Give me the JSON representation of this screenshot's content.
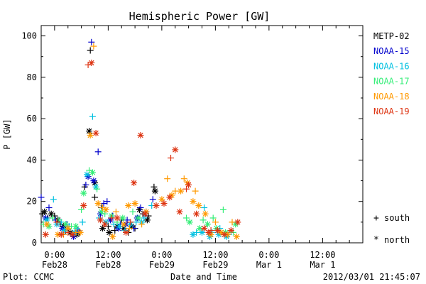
{
  "chart_data": {
    "type": "scatter",
    "title": "Hemispheric Power [GW]",
    "ylabel": "P [GW]",
    "xlabel": "Date and Time",
    "ylim": [
      0,
      105
    ],
    "yticks": [
      0,
      20,
      40,
      60,
      80,
      100
    ],
    "xlim": [
      "2012-02-27T21:00",
      "2012-03-01T21:00"
    ],
    "xticks": [
      {
        "t": "2012-02-28T00:00",
        "l1": "0:00",
        "l2": "Feb28"
      },
      {
        "t": "2012-02-28T12:00",
        "l1": "12:00",
        "l2": "Feb28"
      },
      {
        "t": "2012-02-29T00:00",
        "l1": "0:00",
        "l2": "Feb29"
      },
      {
        "t": "2012-02-29T12:00",
        "l1": "12:00",
        "l2": "Feb29"
      },
      {
        "t": "2012-03-01T00:00",
        "l1": "0:00",
        "l2": "Mar 1"
      },
      {
        "t": "2012-03-01T12:00",
        "l1": "12:00",
        "l2": "Mar 1"
      }
    ],
    "minor_tick_hours": 3,
    "grid": false,
    "legend_position": "right",
    "markers": {
      "south": "+",
      "north": "*"
    },
    "series": [
      {
        "name": "METP-02",
        "color": "#000000",
        "points": [
          [
            "2012-02-27T21:15",
            14,
            "s"
          ],
          [
            "2012-02-27T22:30",
            12,
            "s"
          ],
          [
            "2012-02-28T00:00",
            13,
            "s"
          ],
          [
            "2012-02-28T01:15",
            9,
            "s"
          ],
          [
            "2012-02-28T02:30",
            6,
            "s"
          ],
          [
            "2012-02-28T04:00",
            4,
            "s"
          ],
          [
            "2012-02-28T05:30",
            5,
            "s"
          ],
          [
            "2012-02-28T06:45",
            27,
            "s"
          ],
          [
            "2012-02-28T08:00",
            93,
            "s"
          ],
          [
            "2012-02-28T09:00",
            22,
            "s"
          ],
          [
            "2012-02-28T10:30",
            17,
            "s"
          ],
          [
            "2012-02-28T12:00",
            8,
            "s"
          ],
          [
            "2012-02-28T13:30",
            6,
            "s"
          ],
          [
            "2012-02-28T15:00",
            11,
            "s"
          ],
          [
            "2012-02-28T16:30",
            5,
            "s"
          ],
          [
            "2012-02-28T18:00",
            7,
            "s"
          ],
          [
            "2012-02-28T19:45",
            14,
            "s"
          ],
          [
            "2012-02-28T21:00",
            13,
            "s"
          ],
          [
            "2012-02-28T22:15",
            27,
            "s"
          ],
          [
            "2012-02-27T21:45",
            15,
            "n"
          ],
          [
            "2012-02-27T23:15",
            14,
            "n"
          ],
          [
            "2012-02-28T00:45",
            11,
            "n"
          ],
          [
            "2012-02-28T02:00",
            8,
            "n"
          ],
          [
            "2012-02-28T03:30",
            5,
            "n"
          ],
          [
            "2012-02-28T05:00",
            4,
            "n"
          ],
          [
            "2012-02-28T07:45",
            54,
            "n"
          ],
          [
            "2012-02-28T09:00",
            29,
            "n"
          ],
          [
            "2012-02-28T10:45",
            7,
            "n"
          ],
          [
            "2012-02-28T12:15",
            5,
            "n"
          ],
          [
            "2012-02-28T14:00",
            8,
            "n"
          ],
          [
            "2012-02-28T15:30",
            7,
            "n"
          ],
          [
            "2012-02-28T17:15",
            8,
            "n"
          ],
          [
            "2012-02-28T19:00",
            16,
            "n"
          ],
          [
            "2012-02-28T20:45",
            11,
            "n"
          ],
          [
            "2012-02-28T22:30",
            25,
            "n"
          ]
        ]
      },
      {
        "name": "NOAA-15",
        "color": "#0000cc",
        "points": [
          [
            "2012-02-27T21:00",
            22,
            "s"
          ],
          [
            "2012-02-27T22:45",
            17,
            "s"
          ],
          [
            "2012-02-28T00:15",
            11,
            "s"
          ],
          [
            "2012-02-28T02:45",
            9,
            "s"
          ],
          [
            "2012-02-28T05:15",
            6,
            "s"
          ],
          [
            "2012-02-28T07:00",
            28,
            "s"
          ],
          [
            "2012-02-28T08:15",
            97,
            "s"
          ],
          [
            "2012-02-28T09:45",
            44,
            "s"
          ],
          [
            "2012-02-28T11:00",
            19,
            "s"
          ],
          [
            "2012-02-28T11:45",
            20,
            "s"
          ],
          [
            "2012-02-28T13:00",
            13,
            "s"
          ],
          [
            "2012-02-28T14:45",
            9,
            "s"
          ],
          [
            "2012-02-28T16:15",
            11,
            "s"
          ],
          [
            "2012-02-28T17:45",
            7,
            "s"
          ],
          [
            "2012-02-28T19:15",
            17,
            "s"
          ],
          [
            "2012-02-28T20:30",
            15,
            "s"
          ],
          [
            "2012-02-28T22:00",
            21,
            "s"
          ],
          [
            "2012-02-27T22:00",
            12,
            "n"
          ],
          [
            "2012-02-28T01:45",
            7,
            "n"
          ],
          [
            "2012-02-28T04:15",
            3,
            "n"
          ],
          [
            "2012-02-28T07:30",
            32,
            "n"
          ],
          [
            "2012-02-28T08:45",
            30,
            "n"
          ],
          [
            "2012-02-28T10:15",
            14,
            "n"
          ],
          [
            "2012-02-28T12:30",
            11,
            "n"
          ],
          [
            "2012-02-28T14:15",
            7,
            "n"
          ],
          [
            "2012-02-28T16:00",
            9,
            "n"
          ],
          [
            "2012-02-28T18:30",
            12,
            "n"
          ],
          [
            "2012-02-28T20:15",
            14,
            "n"
          ]
        ]
      },
      {
        "name": "NOAA-16",
        "color": "#00c0e0",
        "points": [
          [
            "2012-02-27T23:45",
            21,
            "s"
          ],
          [
            "2012-02-28T01:30",
            10,
            "s"
          ],
          [
            "2012-02-28T03:15",
            8,
            "s"
          ],
          [
            "2012-02-28T05:00",
            7,
            "s"
          ],
          [
            "2012-02-28T06:15",
            10,
            "s"
          ],
          [
            "2012-02-28T08:30",
            61,
            "s"
          ],
          [
            "2012-02-28T10:00",
            12,
            "s"
          ],
          [
            "2012-02-28T13:15",
            9,
            "s"
          ],
          [
            "2012-02-28T15:45",
            6,
            "s"
          ],
          [
            "2012-02-28T18:15",
            10,
            "s"
          ],
          [
            "2012-02-28T20:00",
            12,
            "s"
          ],
          [
            "2012-02-28T21:45",
            18,
            "s"
          ],
          [
            "2012-02-29T07:45",
            5,
            "s"
          ],
          [
            "2012-02-29T09:30",
            17,
            "s"
          ],
          [
            "2012-02-29T11:15",
            5,
            "s"
          ],
          [
            "2012-02-29T13:00",
            7,
            "s"
          ],
          [
            "2012-02-29T15:00",
            4,
            "s"
          ],
          [
            "2012-02-27T22:15",
            11,
            "n"
          ],
          [
            "2012-02-28T00:30",
            9,
            "n"
          ],
          [
            "2012-02-28T02:15",
            6,
            "n"
          ],
          [
            "2012-02-28T04:30",
            5,
            "n"
          ],
          [
            "2012-02-28T07:15",
            33,
            "n"
          ],
          [
            "2012-02-28T09:15",
            27,
            "n"
          ],
          [
            "2012-02-28T11:30",
            10,
            "n"
          ],
          [
            "2012-02-28T14:30",
            8,
            "n"
          ],
          [
            "2012-02-28T17:00",
            9,
            "n"
          ],
          [
            "2012-02-28T19:30",
            10,
            "n"
          ],
          [
            "2012-02-29T07:00",
            4,
            "n"
          ],
          [
            "2012-02-29T09:00",
            5,
            "n"
          ],
          [
            "2012-02-29T10:45",
            3,
            "n"
          ],
          [
            "2012-02-29T12:45",
            4,
            "n"
          ],
          [
            "2012-02-29T14:30",
            3,
            "n"
          ]
        ]
      },
      {
        "name": "NOAA-17",
        "color": "#33ee77",
        "points": [
          [
            "2012-02-27T21:30",
            9,
            "s"
          ],
          [
            "2012-02-27T23:30",
            12,
            "s"
          ],
          [
            "2012-02-28T01:00",
            11,
            "s"
          ],
          [
            "2012-02-28T03:45",
            8,
            "s"
          ],
          [
            "2012-02-28T06:00",
            16,
            "s"
          ],
          [
            "2012-02-28T07:45",
            35,
            "s"
          ],
          [
            "2012-02-28T09:30",
            26,
            "s"
          ],
          [
            "2012-02-28T11:15",
            14,
            "s"
          ],
          [
            "2012-02-28T14:00",
            10,
            "s"
          ],
          [
            "2012-02-28T17:30",
            15,
            "s"
          ],
          [
            "2012-02-29T05:30",
            12,
            "s"
          ],
          [
            "2012-02-29T09:15",
            11,
            "s"
          ],
          [
            "2012-02-29T11:30",
            12,
            "s"
          ],
          [
            "2012-02-29T13:45",
            16,
            "s"
          ],
          [
            "2012-02-29T16:00",
            5,
            "s"
          ],
          [
            "2012-02-27T22:45",
            8,
            "n"
          ],
          [
            "2012-02-28T02:30",
            9,
            "n"
          ],
          [
            "2012-02-28T04:45",
            8,
            "n"
          ],
          [
            "2012-02-28T06:30",
            24,
            "n"
          ],
          [
            "2012-02-28T08:30",
            34,
            "n"
          ],
          [
            "2012-02-28T10:30",
            15,
            "n"
          ],
          [
            "2012-02-28T12:45",
            13,
            "n"
          ],
          [
            "2012-02-28T15:15",
            12,
            "n"
          ],
          [
            "2012-02-28T18:45",
            12,
            "n"
          ],
          [
            "2012-02-29T06:15",
            10,
            "n"
          ],
          [
            "2012-02-29T08:30",
            7,
            "n"
          ],
          [
            "2012-02-29T10:15",
            9,
            "n"
          ],
          [
            "2012-02-29T12:15",
            7,
            "n"
          ],
          [
            "2012-02-29T14:15",
            5,
            "n"
          ],
          [
            "2012-02-29T16:30",
            9,
            "n"
          ]
        ]
      },
      {
        "name": "NOAA-18",
        "color": "#ff9900",
        "points": [
          [
            "2012-02-28T02:00",
            4,
            "s"
          ],
          [
            "2012-02-28T04:45",
            5,
            "s"
          ],
          [
            "2012-02-28T08:45",
            95,
            "s"
          ],
          [
            "2012-02-28T10:45",
            17,
            "s"
          ],
          [
            "2012-02-28T13:45",
            15,
            "s"
          ],
          [
            "2012-02-28T16:45",
            7,
            "s"
          ],
          [
            "2012-02-28T19:30",
            9,
            "s"
          ],
          [
            "2012-02-29T01:15",
            31,
            "s"
          ],
          [
            "2012-02-29T03:00",
            25,
            "s"
          ],
          [
            "2012-02-29T05:00",
            31,
            "s"
          ],
          [
            "2012-02-29T07:30",
            25,
            "s"
          ],
          [
            "2012-02-29T12:00",
            10,
            "s"
          ],
          [
            "2012-02-29T15:45",
            10,
            "s"
          ],
          [
            "2012-02-27T22:15",
            9,
            "n"
          ],
          [
            "2012-02-28T00:45",
            4,
            "n"
          ],
          [
            "2012-02-28T03:00",
            7,
            "n"
          ],
          [
            "2012-02-28T05:45",
            5,
            "n"
          ],
          [
            "2012-02-28T08:00",
            52,
            "n"
          ],
          [
            "2012-02-28T09:45",
            19,
            "n"
          ],
          [
            "2012-02-28T11:30",
            16,
            "n"
          ],
          [
            "2012-02-28T13:00",
            3,
            "n"
          ],
          [
            "2012-02-28T15:30",
            9,
            "n"
          ],
          [
            "2012-02-28T16:30",
            18,
            "n"
          ],
          [
            "2012-02-28T18:00",
            19,
            "n"
          ],
          [
            "2012-02-28T20:30",
            15,
            "n"
          ],
          [
            "2012-02-29T00:00",
            21,
            "n"
          ],
          [
            "2012-02-29T02:15",
            23,
            "n"
          ],
          [
            "2012-02-29T04:15",
            25,
            "n"
          ],
          [
            "2012-02-29T05:45",
            29,
            "n"
          ],
          [
            "2012-02-29T07:00",
            20,
            "n"
          ],
          [
            "2012-02-29T08:15",
            18,
            "n"
          ],
          [
            "2012-02-29T09:45",
            14,
            "n"
          ],
          [
            "2012-02-29T11:00",
            4,
            "n"
          ],
          [
            "2012-02-29T13:15",
            5,
            "n"
          ],
          [
            "2012-02-29T14:45",
            4,
            "n"
          ],
          [
            "2012-02-29T16:45",
            3,
            "n"
          ]
        ]
      },
      {
        "name": "NOAA-19",
        "color": "#dd3311",
        "points": [
          [
            "2012-02-28T00:30",
            10,
            "s"
          ],
          [
            "2012-02-28T03:00",
            5,
            "s"
          ],
          [
            "2012-02-28T07:30",
            86,
            "s"
          ],
          [
            "2012-02-28T12:45",
            12,
            "s"
          ],
          [
            "2012-02-28T17:00",
            10,
            "s"
          ],
          [
            "2012-02-29T02:00",
            41,
            "s"
          ],
          [
            "2012-02-29T05:30",
            26,
            "s"
          ],
          [
            "2012-02-29T11:00",
            6,
            "s"
          ],
          [
            "2012-02-27T22:00",
            4,
            "n"
          ],
          [
            "2012-02-28T01:30",
            4,
            "n"
          ],
          [
            "2012-02-28T04:00",
            4,
            "n"
          ],
          [
            "2012-02-28T06:30",
            18,
            "n"
          ],
          [
            "2012-02-28T08:15",
            87,
            "n"
          ],
          [
            "2012-02-28T09:15",
            53,
            "n"
          ],
          [
            "2012-02-28T10:15",
            11,
            "n"
          ],
          [
            "2012-02-28T11:15",
            9,
            "n"
          ],
          [
            "2012-02-28T14:00",
            12,
            "n"
          ],
          [
            "2012-02-28T16:00",
            5,
            "n"
          ],
          [
            "2012-02-28T17:45",
            29,
            "n"
          ],
          [
            "2012-02-28T19:15",
            52,
            "n"
          ],
          [
            "2012-02-28T20:15",
            14,
            "n"
          ],
          [
            "2012-02-28T22:45",
            18,
            "n"
          ],
          [
            "2012-02-29T00:30",
            19,
            "n"
          ],
          [
            "2012-02-29T01:45",
            22,
            "n"
          ],
          [
            "2012-02-29T03:00",
            45,
            "n"
          ],
          [
            "2012-02-29T04:00",
            15,
            "n"
          ],
          [
            "2012-02-29T06:00",
            28,
            "n"
          ],
          [
            "2012-02-29T07:45",
            14,
            "n"
          ],
          [
            "2012-02-29T09:30",
            7,
            "n"
          ],
          [
            "2012-02-29T10:30",
            5,
            "n"
          ],
          [
            "2012-02-29T12:30",
            6,
            "n"
          ],
          [
            "2012-02-29T14:00",
            4,
            "n"
          ],
          [
            "2012-02-29T15:30",
            6,
            "n"
          ],
          [
            "2012-02-29T17:00",
            10,
            "n"
          ]
        ]
      }
    ]
  },
  "legend_markers": {
    "south_label": "south",
    "north_label": "north"
  },
  "footer": {
    "left": "Plot: CCMC",
    "center": "Date and Time",
    "right": "2012/03/01 21:45:07"
  }
}
